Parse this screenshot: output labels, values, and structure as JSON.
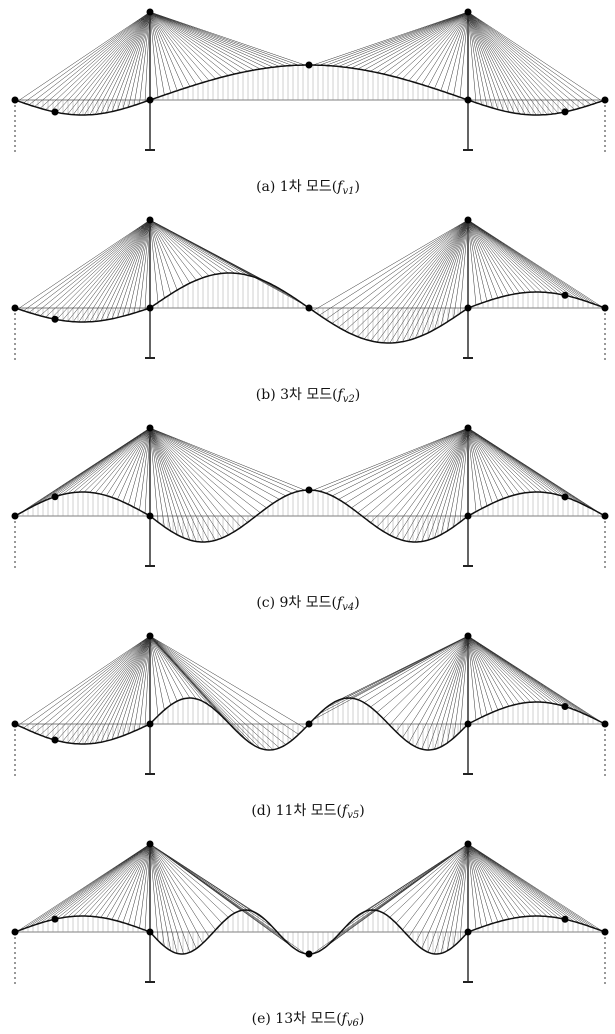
{
  "panels": [
    {
      "caption": {
        "text": "(a) 1차 모드(",
        "symbol": "f",
        "subscript": "v1",
        "close": ")"
      }
    },
    {
      "caption": {
        "text": "(b) 3차 모드(",
        "symbol": "f",
        "subscript": "v2",
        "close": ")"
      }
    },
    {
      "caption": {
        "text": "(c) 9차 모드(",
        "symbol": "f",
        "subscript": "v4",
        "close": ")"
      }
    },
    {
      "caption": {
        "text": "(d) 11차 모드(",
        "symbol": "f",
        "subscript": "v5",
        "close": ")"
      }
    },
    {
      "caption": {
        "text": "(e) 13차 모드(",
        "symbol": "f",
        "subscript": "v6",
        "close": ")"
      }
    }
  ]
}
